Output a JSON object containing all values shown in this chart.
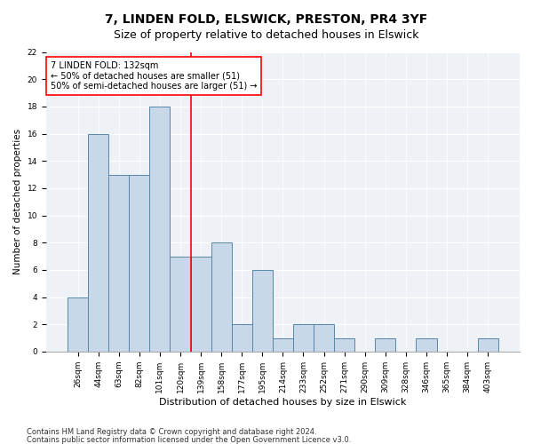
{
  "title": "7, LINDEN FOLD, ELSWICK, PRESTON, PR4 3YF",
  "subtitle": "Size of property relative to detached houses in Elswick",
  "xlabel": "Distribution of detached houses by size in Elswick",
  "ylabel": "Number of detached properties",
  "categories": [
    "26sqm",
    "44sqm",
    "63sqm",
    "82sqm",
    "101sqm",
    "120sqm",
    "139sqm",
    "158sqm",
    "177sqm",
    "195sqm",
    "214sqm",
    "233sqm",
    "252sqm",
    "271sqm",
    "290sqm",
    "309sqm",
    "328sqm",
    "346sqm",
    "365sqm",
    "384sqm",
    "403sqm"
  ],
  "values": [
    4,
    16,
    13,
    13,
    18,
    7,
    7,
    8,
    2,
    6,
    1,
    2,
    2,
    1,
    0,
    1,
    0,
    1,
    0,
    0,
    1
  ],
  "bar_color": "#c8d8e8",
  "bar_edge_color": "#5588aa",
  "red_line_index": 5,
  "annotation_lines": [
    "7 LINDEN FOLD: 132sqm",
    "← 50% of detached houses are smaller (51)",
    "50% of semi-detached houses are larger (51) →"
  ],
  "ylim": [
    0,
    22
  ],
  "yticks": [
    0,
    2,
    4,
    6,
    8,
    10,
    12,
    14,
    16,
    18,
    20,
    22
  ],
  "footnote1": "Contains HM Land Registry data © Crown copyright and database right 2024.",
  "footnote2": "Contains public sector information licensed under the Open Government Licence v3.0.",
  "title_fontsize": 10,
  "subtitle_fontsize": 9,
  "xlabel_fontsize": 8,
  "ylabel_fontsize": 7.5,
  "tick_fontsize": 6.5,
  "annotation_fontsize": 7,
  "footnote_fontsize": 6,
  "background_color": "#eef2f7"
}
